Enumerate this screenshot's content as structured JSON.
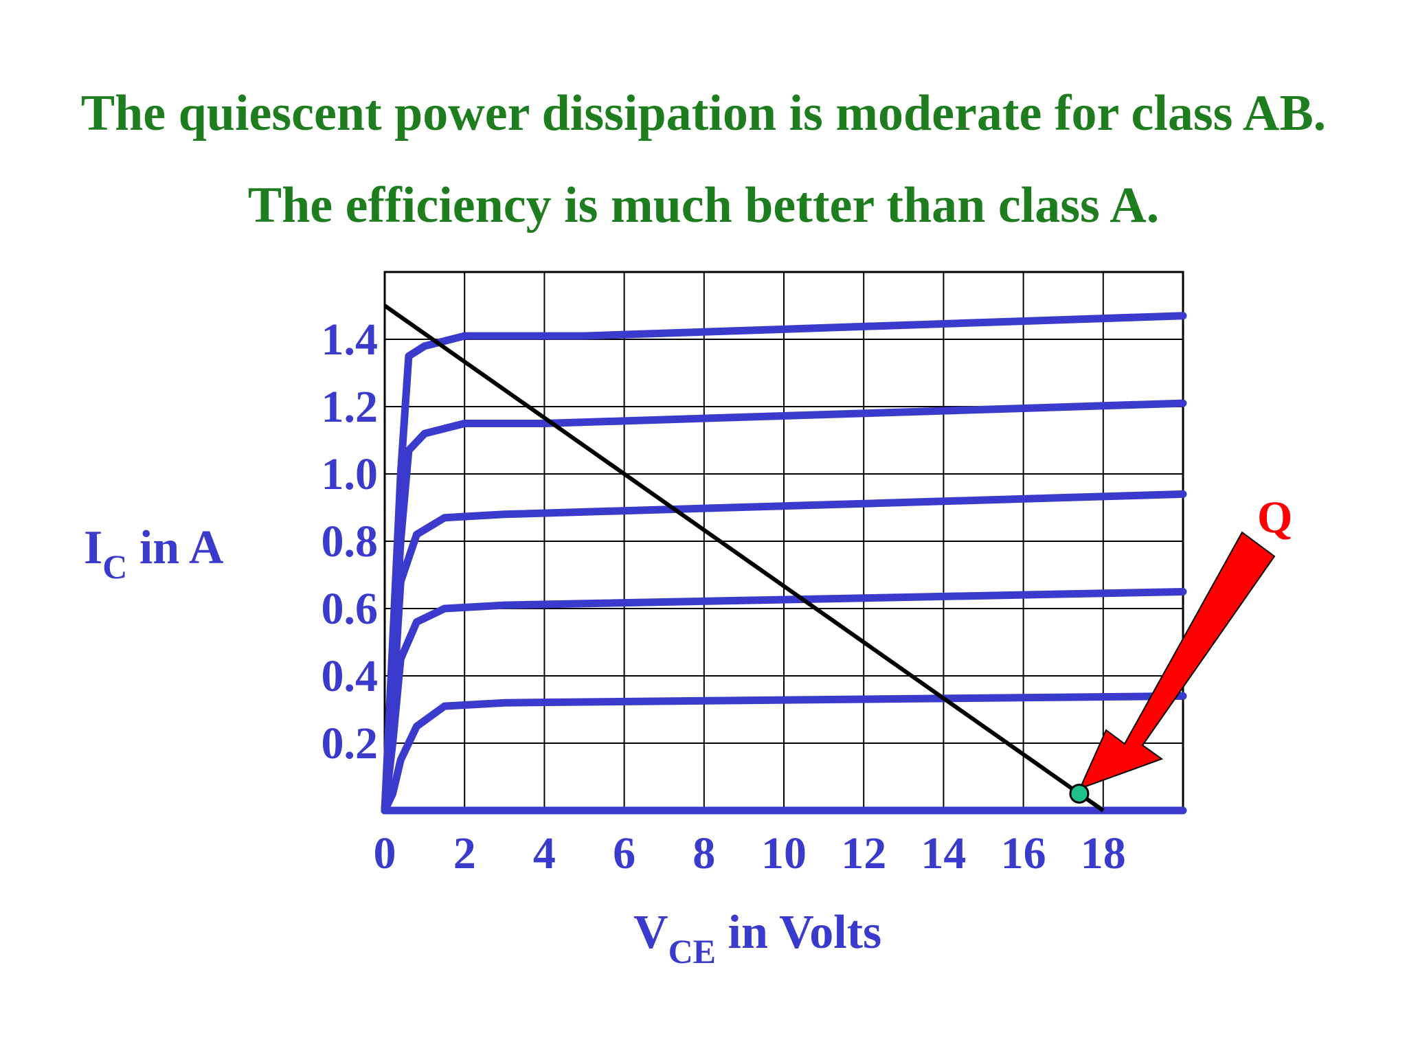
{
  "headline": {
    "line1": "The quiescent power dissipation is moderate for class AB.",
    "line2": "The efficiency is much better than class A."
  },
  "colors": {
    "headline": "#1e7d1e",
    "curves": "#3a3acc",
    "load_line": "#000000",
    "arrow": "#ff0000",
    "q_point": "#1fc08a"
  },
  "chart_data": {
    "type": "line",
    "xlim": [
      0,
      20
    ],
    "ylim": [
      0,
      1.6
    ],
    "grid": true,
    "x_ticks": [
      "0",
      "2",
      "4",
      "6",
      "8",
      "10",
      "12",
      "14",
      "16",
      "18"
    ],
    "y_ticks": [
      "0.2",
      "0.4",
      "0.6",
      "0.8",
      "1.0",
      "1.2",
      "1.4"
    ],
    "xlabel_main": "V",
    "xlabel_sub": "CE",
    "xlabel_rest": " in Volts",
    "ylabel_main": "I",
    "ylabel_sub": "C",
    "ylabel_rest": " in A",
    "series": [
      {
        "points": [
          [
            0,
            0
          ],
          [
            20,
            0
          ]
        ]
      },
      {
        "points": [
          [
            0,
            0
          ],
          [
            0.2,
            0.05
          ],
          [
            0.4,
            0.15
          ],
          [
            0.8,
            0.25
          ],
          [
            1.5,
            0.31
          ],
          [
            3,
            0.32
          ],
          [
            20,
            0.34
          ]
        ]
      },
      {
        "points": [
          [
            0,
            0
          ],
          [
            0.2,
            0.2
          ],
          [
            0.4,
            0.45
          ],
          [
            0.8,
            0.56
          ],
          [
            1.5,
            0.6
          ],
          [
            3,
            0.61
          ],
          [
            20,
            0.65
          ]
        ]
      },
      {
        "points": [
          [
            0,
            0
          ],
          [
            0.2,
            0.3
          ],
          [
            0.4,
            0.68
          ],
          [
            0.8,
            0.82
          ],
          [
            1.5,
            0.87
          ],
          [
            3,
            0.88
          ],
          [
            20,
            0.94
          ]
        ]
      },
      {
        "points": [
          [
            0,
            0
          ],
          [
            0.2,
            0.4
          ],
          [
            0.4,
            0.8
          ],
          [
            0.6,
            1.07
          ],
          [
            1.0,
            1.12
          ],
          [
            2,
            1.15
          ],
          [
            4,
            1.15
          ],
          [
            20,
            1.21
          ]
        ]
      },
      {
        "points": [
          [
            0,
            0
          ],
          [
            0.2,
            0.5
          ],
          [
            0.4,
            1.0
          ],
          [
            0.6,
            1.35
          ],
          [
            1.0,
            1.38
          ],
          [
            2,
            1.41
          ],
          [
            5,
            1.41
          ],
          [
            20,
            1.47
          ]
        ]
      }
    ],
    "load_line": [
      [
        0,
        1.5
      ],
      [
        18,
        0
      ]
    ],
    "q_point": {
      "x": 17.4,
      "y": 0.05,
      "label": "Q"
    }
  }
}
